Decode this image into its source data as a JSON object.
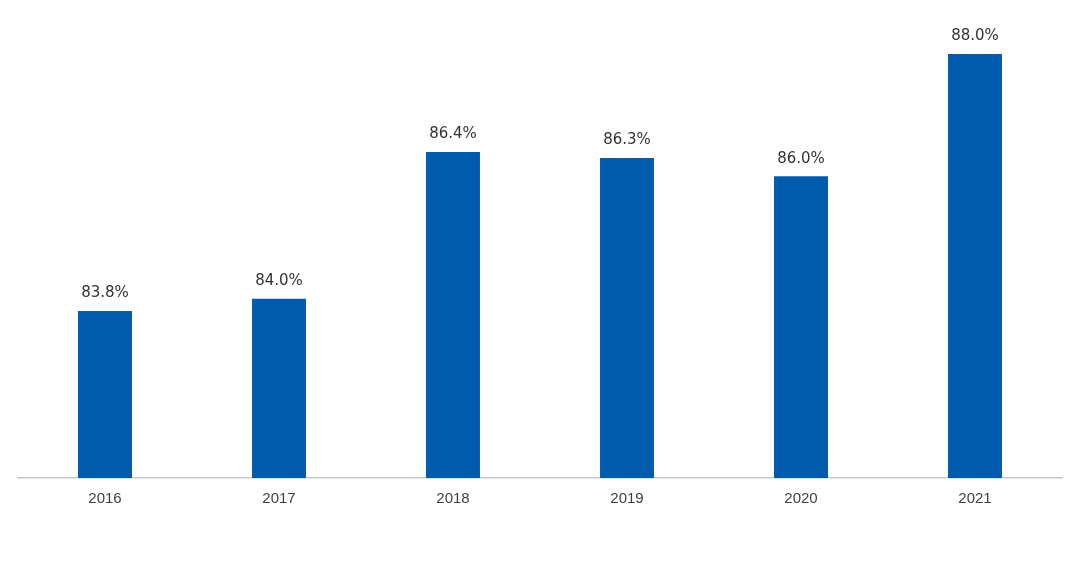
{
  "chart_data": {
    "type": "bar",
    "categories": [
      "2016",
      "2017",
      "2018",
      "2019",
      "2020",
      "2021"
    ],
    "values": [
      83.8,
      84.0,
      86.4,
      86.3,
      86.0,
      88.0
    ],
    "value_labels": [
      "83.8%",
      "84.0%",
      "86.4%",
      "86.3%",
      "86.0%",
      "88.0%"
    ],
    "color": "#005bac",
    "tick_labels": "x",
    "grid": false,
    "legend": false
  }
}
